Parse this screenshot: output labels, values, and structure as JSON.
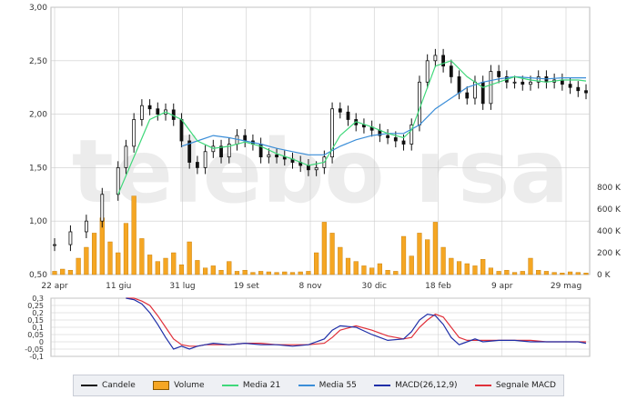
{
  "colors": {
    "candle": "#111111",
    "volume": "#f5a623",
    "media21": "#3fd87a",
    "media55": "#3b8ed8",
    "macd": "#1f2fa8",
    "signal": "#e0303a",
    "grid": "#cccccc",
    "background": "#ffffff",
    "watermark": "#e6e6e6"
  },
  "watermark": "telebo rsa",
  "legend": {
    "items": [
      {
        "label": "Candele",
        "kind": "line",
        "color": "#111111"
      },
      {
        "label": "Volume",
        "kind": "box",
        "color": "#f5a623"
      },
      {
        "label": "Media 21",
        "kind": "line",
        "color": "#3fd87a"
      },
      {
        "label": "Media 55",
        "kind": "line",
        "color": "#3b8ed8"
      },
      {
        "label": "MACD(26,12,9)",
        "kind": "line",
        "color": "#1f2fa8"
      },
      {
        "label": "Segnale MACD",
        "kind": "line",
        "color": "#e0303a"
      }
    ]
  },
  "chart_data": [
    {
      "type": "line",
      "name": "price-panel",
      "x_tick_labels": [
        "22 apr",
        "11 giu",
        "31 lug",
        "19 set",
        "8 nov",
        "30 dic",
        "18 feb",
        "9 apr",
        "29 mag"
      ],
      "y_tick_labels": [
        "0,50",
        "1,00",
        "1,50",
        "2,00",
        "2,50",
        "3,00"
      ],
      "ylim": [
        0.5,
        3.0
      ],
      "volume_tick_labels": [
        "0 K",
        "200 K",
        "400 K",
        "600 K",
        "800 K"
      ],
      "volume_lim": [
        0,
        800000
      ],
      "grid": true,
      "close_points": [
        [
          0,
          0.78
        ],
        [
          2,
          0.9
        ],
        [
          4,
          1.0
        ],
        [
          6,
          1.25
        ],
        [
          8,
          1.5
        ],
        [
          9,
          1.7
        ],
        [
          10,
          1.95
        ],
        [
          11,
          2.08
        ],
        [
          12,
          2.05
        ],
        [
          13,
          2.0
        ],
        [
          14,
          2.04
        ],
        [
          15,
          1.95
        ],
        [
          16,
          1.75
        ],
        [
          17,
          1.55
        ],
        [
          18,
          1.5
        ],
        [
          19,
          1.65
        ],
        [
          20,
          1.7
        ],
        [
          21,
          1.6
        ],
        [
          22,
          1.72
        ],
        [
          23,
          1.8
        ],
        [
          24,
          1.75
        ],
        [
          25,
          1.72
        ],
        [
          26,
          1.6
        ],
        [
          27,
          1.62
        ],
        [
          28,
          1.6
        ],
        [
          29,
          1.58
        ],
        [
          30,
          1.55
        ],
        [
          31,
          1.52
        ],
        [
          32,
          1.48
        ],
        [
          33,
          1.5
        ],
        [
          34,
          1.6
        ],
        [
          35,
          2.05
        ],
        [
          36,
          2.02
        ],
        [
          37,
          1.95
        ],
        [
          38,
          1.9
        ],
        [
          39,
          1.88
        ],
        [
          40,
          1.85
        ],
        [
          41,
          1.8
        ],
        [
          42,
          1.78
        ],
        [
          43,
          1.75
        ],
        [
          44,
          1.72
        ],
        [
          45,
          1.9
        ],
        [
          46,
          2.3
        ],
        [
          47,
          2.5
        ],
        [
          48,
          2.55
        ],
        [
          49,
          2.45
        ],
        [
          50,
          2.35
        ],
        [
          51,
          2.2
        ],
        [
          52,
          2.15
        ],
        [
          53,
          2.3
        ],
        [
          54,
          2.1
        ],
        [
          55,
          2.4
        ],
        [
          56,
          2.35
        ],
        [
          57,
          2.3
        ],
        [
          58,
          2.3
        ],
        [
          59,
          2.28
        ],
        [
          60,
          2.3
        ],
        [
          61,
          2.35
        ],
        [
          62,
          2.3
        ],
        [
          63,
          2.32
        ],
        [
          64,
          2.28
        ],
        [
          65,
          2.25
        ],
        [
          66,
          2.22
        ],
        [
          67,
          2.2
        ]
      ],
      "media21_points": [
        [
          8,
          1.25
        ],
        [
          10,
          1.6
        ],
        [
          12,
          1.95
        ],
        [
          14,
          2.02
        ],
        [
          16,
          1.95
        ],
        [
          18,
          1.75
        ],
        [
          20,
          1.68
        ],
        [
          22,
          1.7
        ],
        [
          24,
          1.74
        ],
        [
          26,
          1.7
        ],
        [
          28,
          1.63
        ],
        [
          30,
          1.58
        ],
        [
          32,
          1.52
        ],
        [
          34,
          1.55
        ],
        [
          36,
          1.8
        ],
        [
          38,
          1.93
        ],
        [
          40,
          1.88
        ],
        [
          42,
          1.82
        ],
        [
          44,
          1.78
        ],
        [
          45,
          1.85
        ],
        [
          46,
          2.05
        ],
        [
          48,
          2.45
        ],
        [
          50,
          2.5
        ],
        [
          52,
          2.35
        ],
        [
          54,
          2.25
        ],
        [
          56,
          2.3
        ],
        [
          58,
          2.35
        ],
        [
          60,
          2.32
        ],
        [
          62,
          2.3
        ],
        [
          64,
          2.32
        ],
        [
          66,
          2.32
        ],
        [
          67,
          2.31
        ]
      ],
      "media55_points": [
        [
          16,
          1.7
        ],
        [
          18,
          1.75
        ],
        [
          20,
          1.8
        ],
        [
          22,
          1.78
        ],
        [
          24,
          1.75
        ],
        [
          26,
          1.72
        ],
        [
          28,
          1.68
        ],
        [
          30,
          1.65
        ],
        [
          32,
          1.62
        ],
        [
          34,
          1.62
        ],
        [
          36,
          1.7
        ],
        [
          38,
          1.76
        ],
        [
          40,
          1.8
        ],
        [
          42,
          1.82
        ],
        [
          44,
          1.82
        ],
        [
          46,
          1.9
        ],
        [
          48,
          2.05
        ],
        [
          50,
          2.15
        ],
        [
          52,
          2.25
        ],
        [
          54,
          2.3
        ],
        [
          56,
          2.33
        ],
        [
          58,
          2.35
        ],
        [
          60,
          2.34
        ],
        [
          62,
          2.33
        ],
        [
          64,
          2.34
        ],
        [
          66,
          2.34
        ],
        [
          67,
          2.34
        ]
      ],
      "volume_points": [
        [
          0,
          30000
        ],
        [
          1,
          50000
        ],
        [
          2,
          40000
        ],
        [
          3,
          150000
        ],
        [
          4,
          250000
        ],
        [
          5,
          380000
        ],
        [
          6,
          520000
        ],
        [
          7,
          300000
        ],
        [
          8,
          200000
        ],
        [
          9,
          470000
        ],
        [
          10,
          720000
        ],
        [
          11,
          330000
        ],
        [
          12,
          180000
        ],
        [
          13,
          120000
        ],
        [
          14,
          150000
        ],
        [
          15,
          200000
        ],
        [
          16,
          90000
        ],
        [
          17,
          300000
        ],
        [
          18,
          130000
        ],
        [
          19,
          60000
        ],
        [
          20,
          80000
        ],
        [
          21,
          40000
        ],
        [
          22,
          120000
        ],
        [
          23,
          30000
        ],
        [
          24,
          40000
        ],
        [
          25,
          20000
        ],
        [
          26,
          30000
        ],
        [
          27,
          25000
        ],
        [
          28,
          20000
        ],
        [
          29,
          25000
        ],
        [
          30,
          20000
        ],
        [
          31,
          25000
        ],
        [
          32,
          30000
        ],
        [
          33,
          200000
        ],
        [
          34,
          480000
        ],
        [
          35,
          380000
        ],
        [
          36,
          250000
        ],
        [
          37,
          150000
        ],
        [
          38,
          120000
        ],
        [
          39,
          80000
        ],
        [
          40,
          60000
        ],
        [
          41,
          100000
        ],
        [
          42,
          40000
        ],
        [
          43,
          30000
        ],
        [
          44,
          350000
        ],
        [
          45,
          170000
        ],
        [
          46,
          380000
        ],
        [
          47,
          320000
        ],
        [
          48,
          480000
        ],
        [
          49,
          250000
        ],
        [
          50,
          150000
        ],
        [
          51,
          120000
        ],
        [
          52,
          100000
        ],
        [
          53,
          80000
        ],
        [
          54,
          140000
        ],
        [
          55,
          60000
        ],
        [
          56,
          30000
        ],
        [
          57,
          40000
        ],
        [
          58,
          20000
        ],
        [
          59,
          30000
        ],
        [
          60,
          150000
        ],
        [
          61,
          40000
        ],
        [
          62,
          30000
        ],
        [
          63,
          20000
        ],
        [
          64,
          15000
        ],
        [
          65,
          25000
        ],
        [
          66,
          20000
        ],
        [
          67,
          15000
        ]
      ]
    },
    {
      "type": "line",
      "name": "macd-panel",
      "y_tick_labels": [
        "-0,1",
        "-0,05",
        "0",
        "0,05",
        "0,1",
        "0,15",
        "0,2",
        "0,25",
        "0,3"
      ],
      "ylim": [
        -0.1,
        0.3
      ],
      "grid": true,
      "series": [
        {
          "name": "MACD(26,12,9)",
          "points": [
            [
              9,
              0.3
            ],
            [
              10,
              0.29
            ],
            [
              11,
              0.26
            ],
            [
              12,
              0.2
            ],
            [
              13,
              0.12
            ],
            [
              14,
              0.03
            ],
            [
              15,
              -0.05
            ],
            [
              16,
              -0.03
            ],
            [
              17,
              -0.05
            ],
            [
              18,
              -0.03
            ],
            [
              19,
              -0.02
            ],
            [
              20,
              -0.01
            ],
            [
              22,
              -0.02
            ],
            [
              24,
              -0.01
            ],
            [
              26,
              -0.02
            ],
            [
              28,
              -0.02
            ],
            [
              30,
              -0.03
            ],
            [
              32,
              -0.02
            ],
            [
              34,
              0.02
            ],
            [
              35,
              0.08
            ],
            [
              36,
              0.11
            ],
            [
              38,
              0.1
            ],
            [
              40,
              0.05
            ],
            [
              42,
              0.01
            ],
            [
              44,
              0.02
            ],
            [
              45,
              0.07
            ],
            [
              46,
              0.15
            ],
            [
              47,
              0.19
            ],
            [
              48,
              0.18
            ],
            [
              49,
              0.12
            ],
            [
              50,
              0.03
            ],
            [
              51,
              -0.02
            ],
            [
              52,
              0.0
            ],
            [
              53,
              0.02
            ],
            [
              54,
              0.0
            ],
            [
              56,
              0.01
            ],
            [
              58,
              0.01
            ],
            [
              60,
              0.0
            ],
            [
              62,
              0.0
            ],
            [
              64,
              0.0
            ],
            [
              66,
              0.0
            ],
            [
              67,
              -0.01
            ]
          ]
        },
        {
          "name": "Segnale MACD",
          "points": [
            [
              9,
              0.3
            ],
            [
              10,
              0.3
            ],
            [
              11,
              0.28
            ],
            [
              12,
              0.25
            ],
            [
              13,
              0.18
            ],
            [
              14,
              0.1
            ],
            [
              15,
              0.02
            ],
            [
              16,
              -0.02
            ],
            [
              17,
              -0.03
            ],
            [
              18,
              -0.03
            ],
            [
              19,
              -0.02
            ],
            [
              20,
              -0.02
            ],
            [
              22,
              -0.02
            ],
            [
              24,
              -0.01
            ],
            [
              26,
              -0.01
            ],
            [
              28,
              -0.02
            ],
            [
              30,
              -0.02
            ],
            [
              32,
              -0.02
            ],
            [
              34,
              -0.01
            ],
            [
              35,
              0.03
            ],
            [
              36,
              0.08
            ],
            [
              38,
              0.11
            ],
            [
              40,
              0.08
            ],
            [
              42,
              0.04
            ],
            [
              44,
              0.02
            ],
            [
              45,
              0.03
            ],
            [
              46,
              0.1
            ],
            [
              47,
              0.15
            ],
            [
              48,
              0.19
            ],
            [
              49,
              0.17
            ],
            [
              50,
              0.1
            ],
            [
              51,
              0.03
            ],
            [
              52,
              0.01
            ],
            [
              53,
              0.01
            ],
            [
              54,
              0.01
            ],
            [
              56,
              0.01
            ],
            [
              58,
              0.01
            ],
            [
              60,
              0.01
            ],
            [
              62,
              0.0
            ],
            [
              64,
              0.0
            ],
            [
              66,
              0.0
            ],
            [
              67,
              0.0
            ]
          ]
        }
      ]
    }
  ]
}
